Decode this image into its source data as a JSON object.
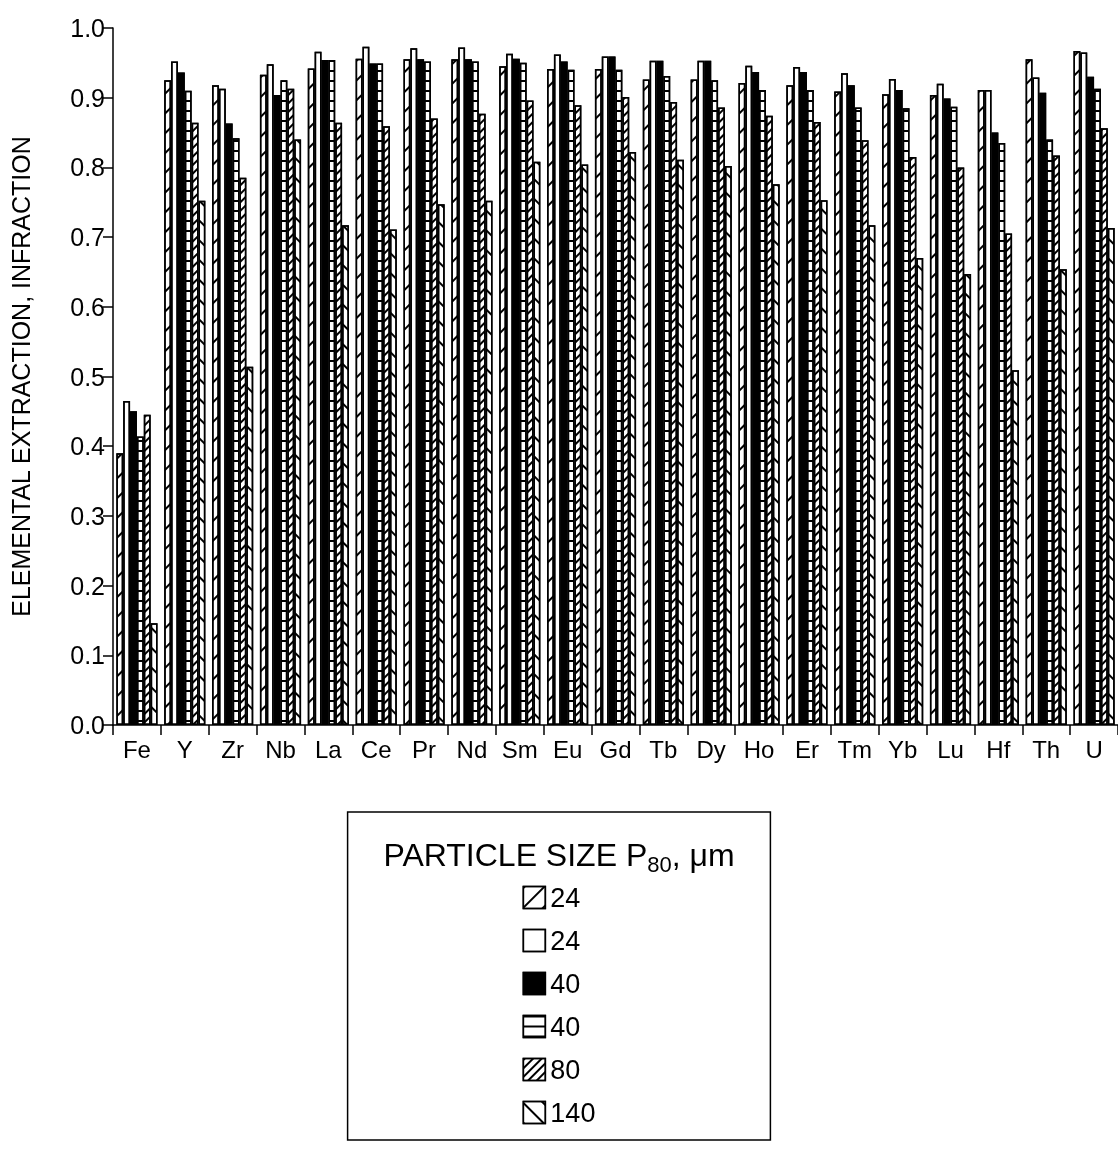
{
  "chart_data": {
    "type": "bar",
    "ylabel": "ELEMENTAL EXTRACTION, INFRACTION",
    "legend_title": "PARTICLE SIZE P$_{80}$, μm",
    "categories": [
      "Fe",
      "Y",
      "Zr",
      "Nb",
      "La",
      "Ce",
      "Pr",
      "Nd",
      "Sm",
      "Eu",
      "Gd",
      "Tb",
      "Dy",
      "Ho",
      "Er",
      "Tm",
      "Yb",
      "Lu",
      "Hf",
      "Th",
      "U"
    ],
    "series": [
      {
        "name": "24",
        "color": "#ffffff",
        "values": [
          0.39,
          0.925,
          0.918,
          0.933,
          0.942,
          0.956,
          0.955,
          0.955,
          0.945,
          0.941,
          0.941,
          0.926,
          0.926,
          0.921,
          0.918,
          0.909,
          0.905,
          0.904,
          0.911,
          0.955,
          0.967
        ]
      },
      {
        "name": "24",
        "color": "#ffffff",
        "values": [
          0.465,
          0.952,
          0.913,
          0.948,
          0.966,
          0.973,
          0.971,
          0.972,
          0.963,
          0.962,
          0.959,
          0.953,
          0.953,
          0.946,
          0.944,
          0.935,
          0.927,
          0.92,
          0.911,
          0.929,
          0.965
        ]
      },
      {
        "name": "40",
        "color": "#000000",
        "values": [
          0.45,
          0.936,
          0.863,
          0.904,
          0.954,
          0.949,
          0.955,
          0.955,
          0.956,
          0.952,
          0.959,
          0.953,
          0.953,
          0.937,
          0.937,
          0.918,
          0.911,
          0.899,
          0.85,
          0.907,
          0.93
        ]
      },
      {
        "name": "40",
        "color": "#ffffff",
        "values": [
          0.414,
          0.91,
          0.842,
          0.925,
          0.954,
          0.949,
          0.952,
          0.952,
          0.95,
          0.94,
          0.94,
          0.931,
          0.925,
          0.911,
          0.911,
          0.886,
          0.885,
          0.887,
          0.835,
          0.84,
          0.913
        ]
      },
      {
        "name": "80",
        "color": "#ffffff",
        "values": [
          0.445,
          0.864,
          0.785,
          0.913,
          0.864,
          0.859,
          0.87,
          0.877,
          0.896,
          0.889,
          0.901,
          0.894,
          0.886,
          0.874,
          0.865,
          0.839,
          0.815,
          0.8,
          0.705,
          0.817,
          0.856
        ]
      },
      {
        "name": "140",
        "color": "#ffffff",
        "values": [
          0.146,
          0.752,
          0.514,
          0.84,
          0.717,
          0.711,
          0.747,
          0.752,
          0.808,
          0.804,
          0.822,
          0.811,
          0.802,
          0.776,
          0.753,
          0.717,
          0.67,
          0.647,
          0.509,
          0.654,
          0.713
        ]
      }
    ],
    "ylim": [
      0,
      1
    ],
    "yticks": [
      {
        "value": 0,
        "label": "0.0"
      },
      {
        "value": 0.1,
        "label": "0.1"
      },
      {
        "value": 0.2,
        "label": "0.2"
      },
      {
        "value": 0.3,
        "label": "0.3"
      },
      {
        "value": 0.4,
        "label": "0.4"
      },
      {
        "value": 0.5,
        "label": "0.5"
      },
      {
        "value": 0.6,
        "label": "0.6"
      },
      {
        "value": 0.7,
        "label": "0.7"
      },
      {
        "value": 0.8,
        "label": "0.8"
      },
      {
        "value": 0.9,
        "label": "0.9"
      },
      {
        "value": 1,
        "label": "1.0"
      }
    ],
    "grid": false,
    "legend": "bottom"
  }
}
